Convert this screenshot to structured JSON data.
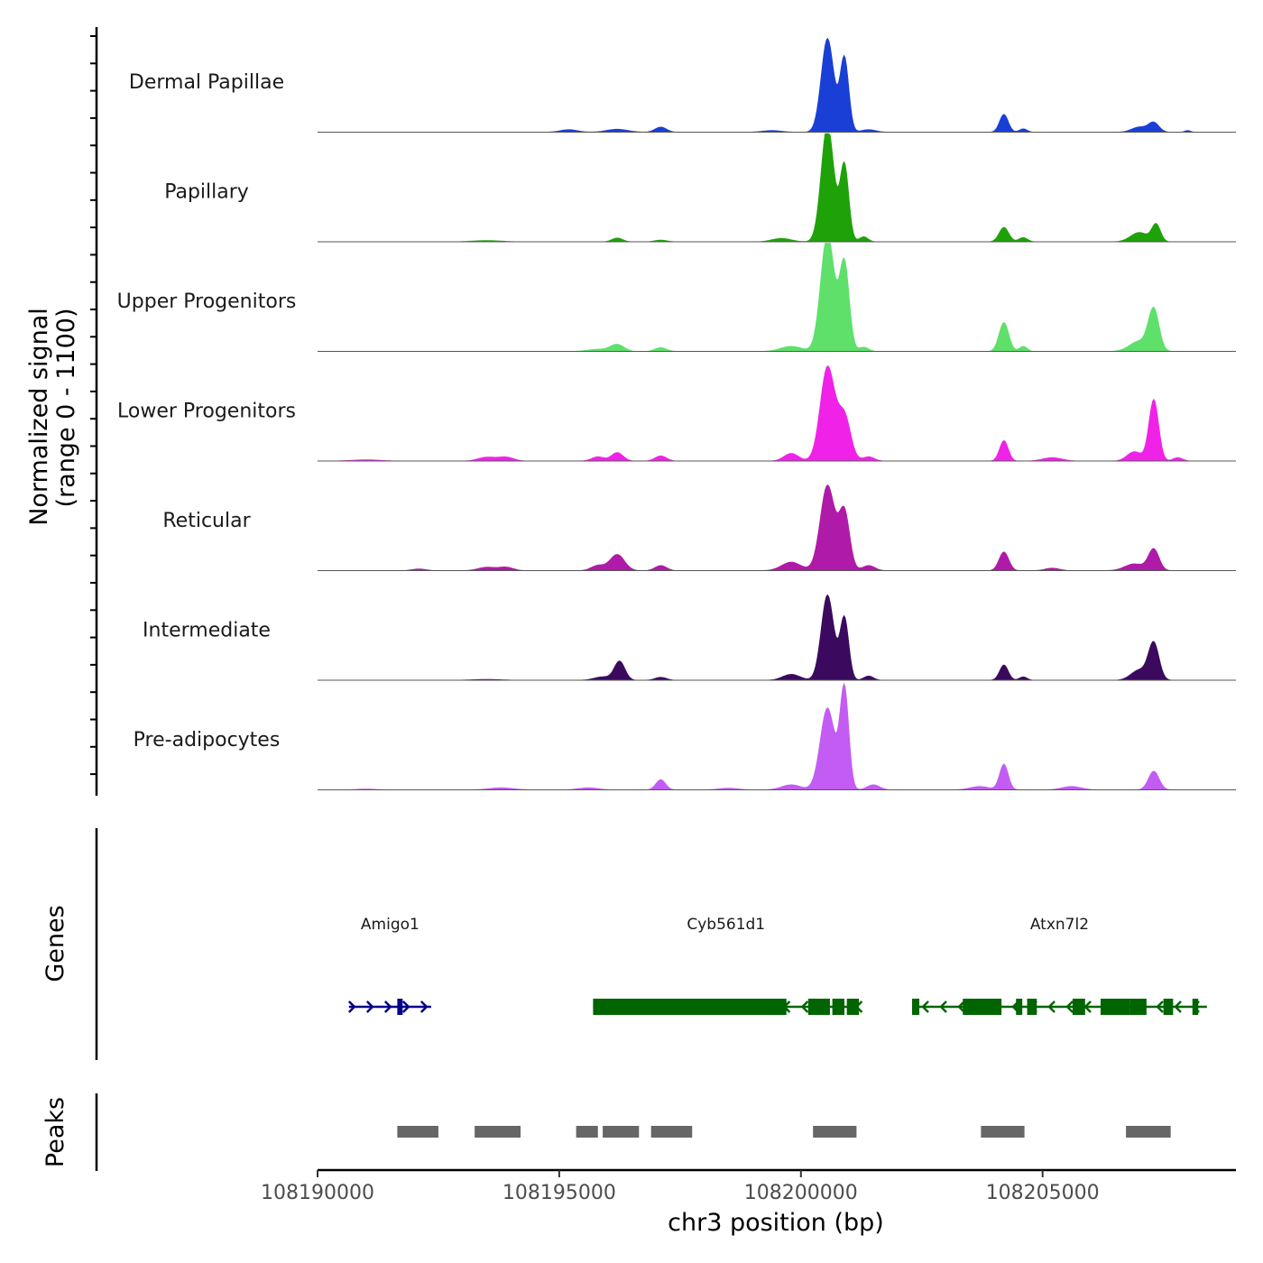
{
  "chart_data": {
    "type": "area",
    "title": "",
    "ylabel": "Normalized signal",
    "ylabel_range": "(range 0 - 1100)",
    "ylim": [
      0,
      1100
    ],
    "xlabel": "chr3 position (bp)",
    "xlim": [
      108190000,
      108209000
    ],
    "xticks": [
      {
        "value": 108190000,
        "label": "108190000"
      },
      {
        "value": 108195000,
        "label": "108195000"
      },
      {
        "value": 108200000,
        "label": "108200000"
      },
      {
        "value": 108205000,
        "label": "108205000"
      }
    ],
    "tracks": [
      {
        "name": "Dermal Papillae",
        "color": "#1a3fd6",
        "peaks": [
          {
            "pos": 108195200,
            "h": 30,
            "w": 180
          },
          {
            "pos": 108196200,
            "h": 35,
            "w": 220
          },
          {
            "pos": 108197100,
            "h": 60,
            "w": 120
          },
          {
            "pos": 108199400,
            "h": 20,
            "w": 200
          },
          {
            "pos": 108200550,
            "h": 1100,
            "w": 130
          },
          {
            "pos": 108200900,
            "h": 870,
            "w": 90
          },
          {
            "pos": 108201400,
            "h": 30,
            "w": 150
          },
          {
            "pos": 108204200,
            "h": 210,
            "w": 90
          },
          {
            "pos": 108204600,
            "h": 40,
            "w": 80
          },
          {
            "pos": 108207000,
            "h": 60,
            "w": 160
          },
          {
            "pos": 108207300,
            "h": 110,
            "w": 110
          },
          {
            "pos": 108208000,
            "h": 20,
            "w": 60
          }
        ]
      },
      {
        "name": "Papillary",
        "color": "#1fa10a",
        "peaks": [
          {
            "pos": 108193500,
            "h": 15,
            "w": 300
          },
          {
            "pos": 108196200,
            "h": 45,
            "w": 110
          },
          {
            "pos": 108197100,
            "h": 20,
            "w": 130
          },
          {
            "pos": 108199600,
            "h": 40,
            "w": 200
          },
          {
            "pos": 108200550,
            "h": 1380,
            "w": 130
          },
          {
            "pos": 108200900,
            "h": 900,
            "w": 90
          },
          {
            "pos": 108201300,
            "h": 60,
            "w": 90
          },
          {
            "pos": 108204200,
            "h": 170,
            "w": 100
          },
          {
            "pos": 108204600,
            "h": 50,
            "w": 90
          },
          {
            "pos": 108207000,
            "h": 110,
            "w": 180
          },
          {
            "pos": 108207350,
            "h": 200,
            "w": 90
          }
        ]
      },
      {
        "name": "Upper Progenitors",
        "color": "#5ee06a",
        "peaks": [
          {
            "pos": 108195800,
            "h": 25,
            "w": 220
          },
          {
            "pos": 108196200,
            "h": 80,
            "w": 140
          },
          {
            "pos": 108197100,
            "h": 45,
            "w": 120
          },
          {
            "pos": 108199800,
            "h": 60,
            "w": 220
          },
          {
            "pos": 108200550,
            "h": 1380,
            "w": 140
          },
          {
            "pos": 108200900,
            "h": 1030,
            "w": 100
          },
          {
            "pos": 108201300,
            "h": 50,
            "w": 100
          },
          {
            "pos": 108204200,
            "h": 340,
            "w": 100
          },
          {
            "pos": 108204600,
            "h": 60,
            "w": 80
          },
          {
            "pos": 108207000,
            "h": 120,
            "w": 200
          },
          {
            "pos": 108207300,
            "h": 480,
            "w": 110
          }
        ]
      },
      {
        "name": "Lower Progenitors",
        "color": "#f022e8",
        "peaks": [
          {
            "pos": 108191000,
            "h": 15,
            "w": 300
          },
          {
            "pos": 108193500,
            "h": 45,
            "w": 180
          },
          {
            "pos": 108193900,
            "h": 45,
            "w": 160
          },
          {
            "pos": 108195800,
            "h": 50,
            "w": 130
          },
          {
            "pos": 108196200,
            "h": 100,
            "w": 120
          },
          {
            "pos": 108197100,
            "h": 60,
            "w": 120
          },
          {
            "pos": 108199800,
            "h": 90,
            "w": 150
          },
          {
            "pos": 108200550,
            "h": 1100,
            "w": 150
          },
          {
            "pos": 108200900,
            "h": 520,
            "w": 130
          },
          {
            "pos": 108201400,
            "h": 50,
            "w": 120
          },
          {
            "pos": 108204200,
            "h": 240,
            "w": 90
          },
          {
            "pos": 108205200,
            "h": 40,
            "w": 200
          },
          {
            "pos": 108206900,
            "h": 110,
            "w": 150
          },
          {
            "pos": 108207300,
            "h": 720,
            "w": 100
          },
          {
            "pos": 108207800,
            "h": 40,
            "w": 100
          }
        ]
      },
      {
        "name": "Reticular",
        "color": "#b01aa8",
        "peaks": [
          {
            "pos": 108192100,
            "h": 20,
            "w": 150
          },
          {
            "pos": 108193500,
            "h": 40,
            "w": 180
          },
          {
            "pos": 108193900,
            "h": 40,
            "w": 150
          },
          {
            "pos": 108195800,
            "h": 60,
            "w": 140
          },
          {
            "pos": 108196200,
            "h": 190,
            "w": 150
          },
          {
            "pos": 108197100,
            "h": 60,
            "w": 120
          },
          {
            "pos": 108199800,
            "h": 100,
            "w": 200
          },
          {
            "pos": 108200550,
            "h": 1000,
            "w": 150
          },
          {
            "pos": 108200900,
            "h": 680,
            "w": 110
          },
          {
            "pos": 108201400,
            "h": 60,
            "w": 130
          },
          {
            "pos": 108204200,
            "h": 220,
            "w": 100
          },
          {
            "pos": 108205200,
            "h": 30,
            "w": 150
          },
          {
            "pos": 108206900,
            "h": 80,
            "w": 200
          },
          {
            "pos": 108207300,
            "h": 250,
            "w": 110
          }
        ]
      },
      {
        "name": "Intermediate",
        "color": "#3b0a5e",
        "peaks": [
          {
            "pos": 108193500,
            "h": 10,
            "w": 300
          },
          {
            "pos": 108195900,
            "h": 40,
            "w": 180
          },
          {
            "pos": 108196250,
            "h": 220,
            "w": 110
          },
          {
            "pos": 108197100,
            "h": 35,
            "w": 120
          },
          {
            "pos": 108199800,
            "h": 70,
            "w": 180
          },
          {
            "pos": 108200550,
            "h": 1000,
            "w": 130
          },
          {
            "pos": 108200900,
            "h": 730,
            "w": 90
          },
          {
            "pos": 108201400,
            "h": 50,
            "w": 100
          },
          {
            "pos": 108204200,
            "h": 180,
            "w": 90
          },
          {
            "pos": 108204600,
            "h": 40,
            "w": 80
          },
          {
            "pos": 108207000,
            "h": 120,
            "w": 170
          },
          {
            "pos": 108207300,
            "h": 430,
            "w": 110
          }
        ]
      },
      {
        "name": "Pre-adipocytes",
        "color": "#c35cf2",
        "peaks": [
          {
            "pos": 108191000,
            "h": 10,
            "w": 200
          },
          {
            "pos": 108193800,
            "h": 25,
            "w": 250
          },
          {
            "pos": 108195600,
            "h": 25,
            "w": 200
          },
          {
            "pos": 108197100,
            "h": 120,
            "w": 100
          },
          {
            "pos": 108198500,
            "h": 20,
            "w": 200
          },
          {
            "pos": 108199800,
            "h": 60,
            "w": 200
          },
          {
            "pos": 108200550,
            "h": 960,
            "w": 150
          },
          {
            "pos": 108200900,
            "h": 1180,
            "w": 90
          },
          {
            "pos": 108201500,
            "h": 60,
            "w": 130
          },
          {
            "pos": 108203700,
            "h": 40,
            "w": 200
          },
          {
            "pos": 108204200,
            "h": 300,
            "w": 90
          },
          {
            "pos": 108205600,
            "h": 40,
            "w": 200
          },
          {
            "pos": 108207300,
            "h": 220,
            "w": 110
          }
        ]
      }
    ],
    "genes": [
      {
        "name": "Amigo1",
        "strand": "+",
        "color": "#00008b",
        "start": 108190650,
        "end": 108192350,
        "blocks": [
          {
            "start": 108191650,
            "end": 108191760
          }
        ]
      },
      {
        "name": "Cyb561d1",
        "strand": "-",
        "color": "#006400",
        "start": 108195700,
        "end": 108201200,
        "blocks": [
          {
            "start": 108195700,
            "end": 108199700
          },
          {
            "start": 108200150,
            "end": 108200600
          },
          {
            "start": 108200650,
            "end": 108200900
          },
          {
            "start": 108200950,
            "end": 108201200
          }
        ]
      },
      {
        "name": "Atxn7l2",
        "strand": "-",
        "color": "#006400",
        "start": 108202300,
        "end": 108208400,
        "blocks": [
          {
            "start": 108202300,
            "end": 108202450
          },
          {
            "start": 108203350,
            "end": 108204150
          },
          {
            "start": 108204450,
            "end": 108204580
          },
          {
            "start": 108204680,
            "end": 108204880
          },
          {
            "start": 108205620,
            "end": 108205880
          },
          {
            "start": 108206200,
            "end": 108206800
          },
          {
            "start": 108206800,
            "end": 108207150
          },
          {
            "start": 108207500,
            "end": 108207700
          },
          {
            "start": 108208100,
            "end": 108208220
          }
        ]
      }
    ],
    "peaks_track": {
      "label": "Peaks",
      "color": "#666666",
      "regions": [
        {
          "start": 108191650,
          "end": 108192500
        },
        {
          "start": 108193250,
          "end": 108194200
        },
        {
          "start": 108195350,
          "end": 108195800
        },
        {
          "start": 108195900,
          "end": 108196650
        },
        {
          "start": 108196900,
          "end": 108197750
        },
        {
          "start": 108200250,
          "end": 108201150
        },
        {
          "start": 108203725,
          "end": 108204625
        },
        {
          "start": 108206725,
          "end": 108207650
        }
      ]
    },
    "genes_label": "Genes"
  }
}
